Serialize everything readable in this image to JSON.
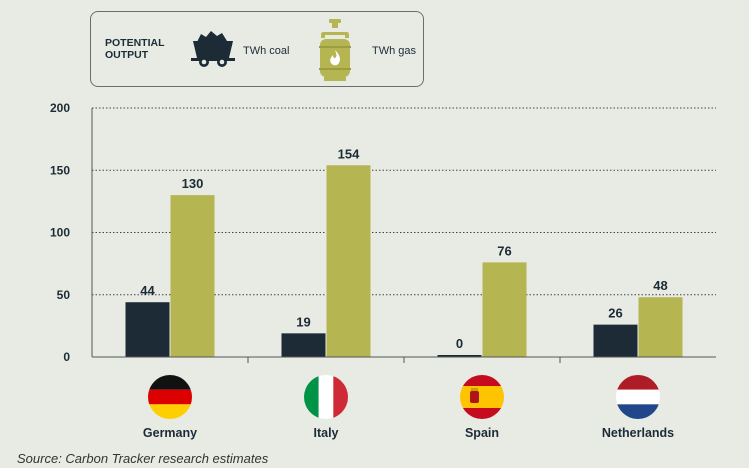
{
  "legend": {
    "title": "POTENTIAL OUTPUT",
    "coal_label": "TWh coal",
    "gas_label": "TWh gas",
    "coal_icon": "coal-wagon-icon",
    "gas_icon": "gas-cylinder-icon"
  },
  "source": "Source: Carbon Tracker research estimates",
  "colors": {
    "coal": "#1c2b36",
    "gas": "#b5b552",
    "background": "#e7ebe4"
  },
  "chart_data": {
    "type": "bar",
    "categories": [
      "Germany",
      "Italy",
      "Spain",
      "Netherlands"
    ],
    "category_icons": [
      "germany-flag-icon",
      "italy-flag-icon",
      "spain-flag-icon",
      "netherlands-flag-icon"
    ],
    "series": [
      {
        "name": "TWh coal",
        "values": [
          44,
          19,
          0,
          26
        ]
      },
      {
        "name": "TWh gas",
        "values": [
          130,
          154,
          76,
          48
        ]
      }
    ],
    "value_labels": [
      [
        "44",
        "19",
        "0",
        "26"
      ],
      [
        "130",
        "154",
        "76",
        "48"
      ]
    ],
    "yticks": [
      0,
      50,
      100,
      150,
      200
    ],
    "ylim": [
      0,
      200
    ],
    "grid": true,
    "legend_position": "top-left"
  }
}
